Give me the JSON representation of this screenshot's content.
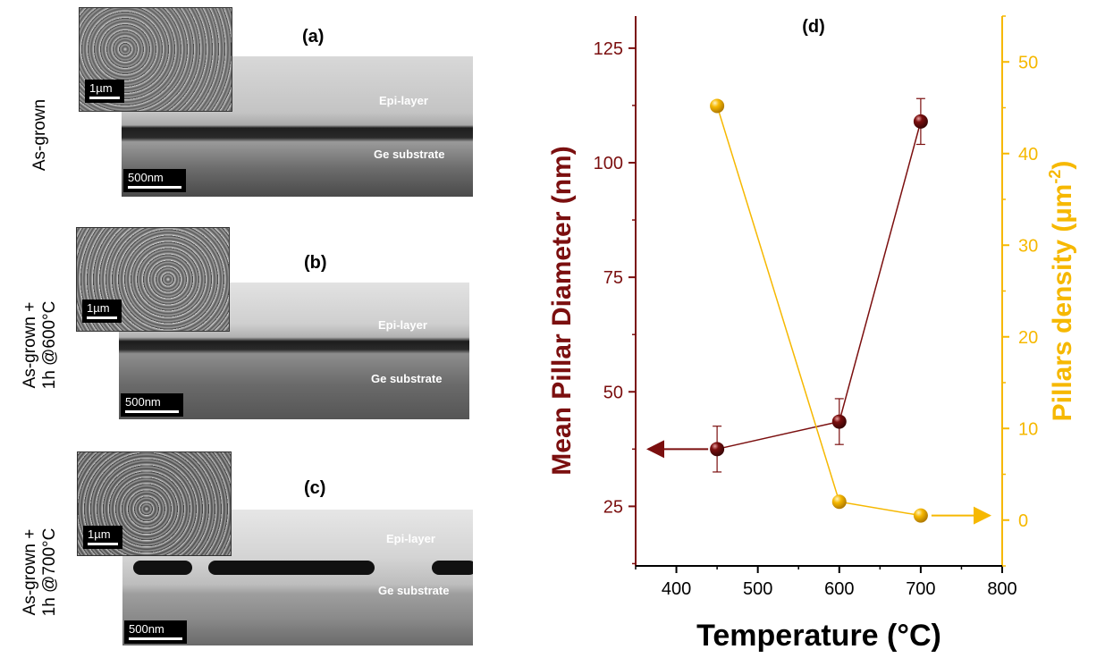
{
  "panels": [
    {
      "title": "(a)",
      "row_label": [
        "As-grown"
      ],
      "inset_scale": "1µm",
      "scale": "500nm",
      "epi": "Epi-layer",
      "ge": "Ge substrate"
    },
    {
      "title": "(b)",
      "row_label": [
        "As-grown +",
        "1h @600°C"
      ],
      "inset_scale": "1µm",
      "scale": "500nm",
      "epi": "Epi-layer",
      "ge": "Ge substrate"
    },
    {
      "title": "(c)",
      "row_label": [
        "As-grown +",
        "1h @700°C"
      ],
      "inset_scale": "1µm",
      "scale": "500nm",
      "epi": "Epi-layer",
      "ge": "Ge substrate"
    }
  ],
  "chart_data": {
    "type": "scatter",
    "title": "(d)",
    "xlabel": "Temperature (°C)",
    "ylabel_left": "Mean Pillar Diameter (nm)",
    "ylabel_right_main": "Pillars density (µm",
    "ylabel_right_sup": "-2",
    "ylabel_right_end": ")",
    "xlim": [
      350,
      800
    ],
    "ylim_left": [
      12,
      132
    ],
    "ylim_right": [
      -5,
      55
    ],
    "xticks": [
      400,
      500,
      600,
      700,
      800
    ],
    "yticks_left": [
      25,
      50,
      75,
      100,
      125
    ],
    "yticks_right": [
      0,
      10,
      20,
      30,
      40,
      50
    ],
    "series": [
      {
        "axis": "left",
        "color": "#7b0f0f",
        "x": [
          450,
          600,
          700
        ],
        "y": [
          37.5,
          43.5,
          109
        ],
        "err": [
          5,
          5,
          5
        ]
      },
      {
        "axis": "right",
        "color": "#f6b800",
        "x": [
          450,
          600,
          700
        ],
        "y": [
          45.2,
          2,
          0.5
        ]
      }
    ],
    "colors": {
      "left_axis": "#7b0f0f",
      "right_axis": "#f6b800"
    }
  }
}
